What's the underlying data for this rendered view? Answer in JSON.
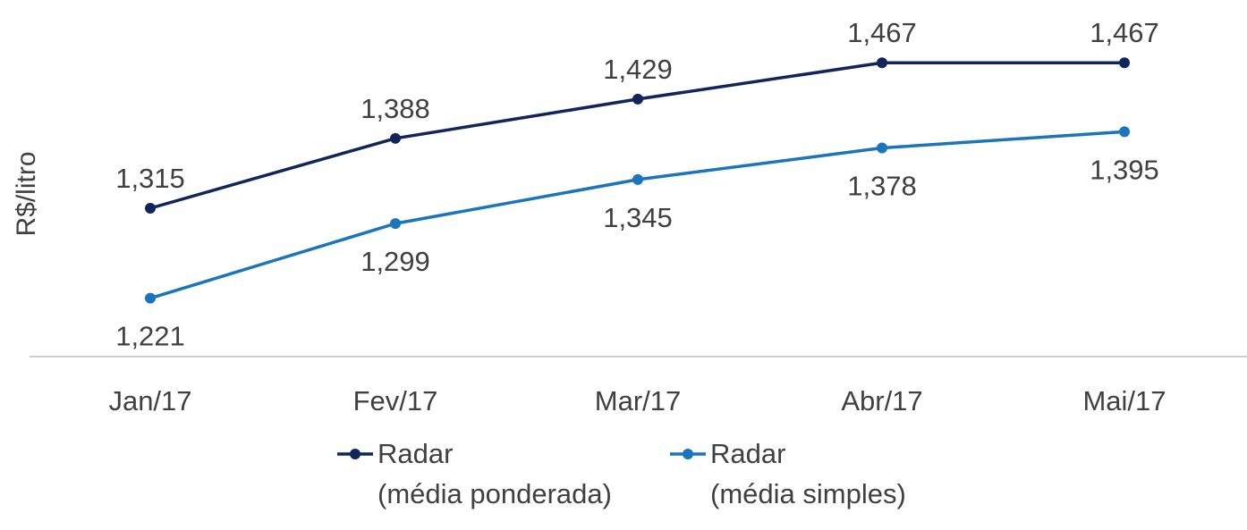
{
  "chart_data": {
    "type": "line",
    "title": "",
    "xlabel": "",
    "ylabel": "R$/litro",
    "categories": [
      "Jan/17",
      "Fev/17",
      "Mar/17",
      "Abr/17",
      "Mai/17"
    ],
    "series": [
      {
        "name": "Radar (média ponderada)",
        "name_lines": [
          "Radar",
          "(média ponderada)"
        ],
        "values": [
          1.315,
          1.388,
          1.429,
          1.467,
          1.467
        ],
        "labels": [
          "1,315",
          "1,388",
          "1,429",
          "1,467",
          "1,467"
        ],
        "label_position": "above",
        "color": "#12255a"
      },
      {
        "name": "Radar (média simples)",
        "name_lines": [
          "Radar",
          "(média simples)"
        ],
        "values": [
          1.221,
          1.299,
          1.345,
          1.378,
          1.395
        ],
        "labels": [
          "1,221",
          "1,299",
          "1,345",
          "1,378",
          "1,395"
        ],
        "label_position": "below",
        "color": "#1a75bb"
      }
    ],
    "ylim": [
      1.2,
      1.5
    ],
    "grid": false,
    "legend_position": "bottom-center"
  }
}
